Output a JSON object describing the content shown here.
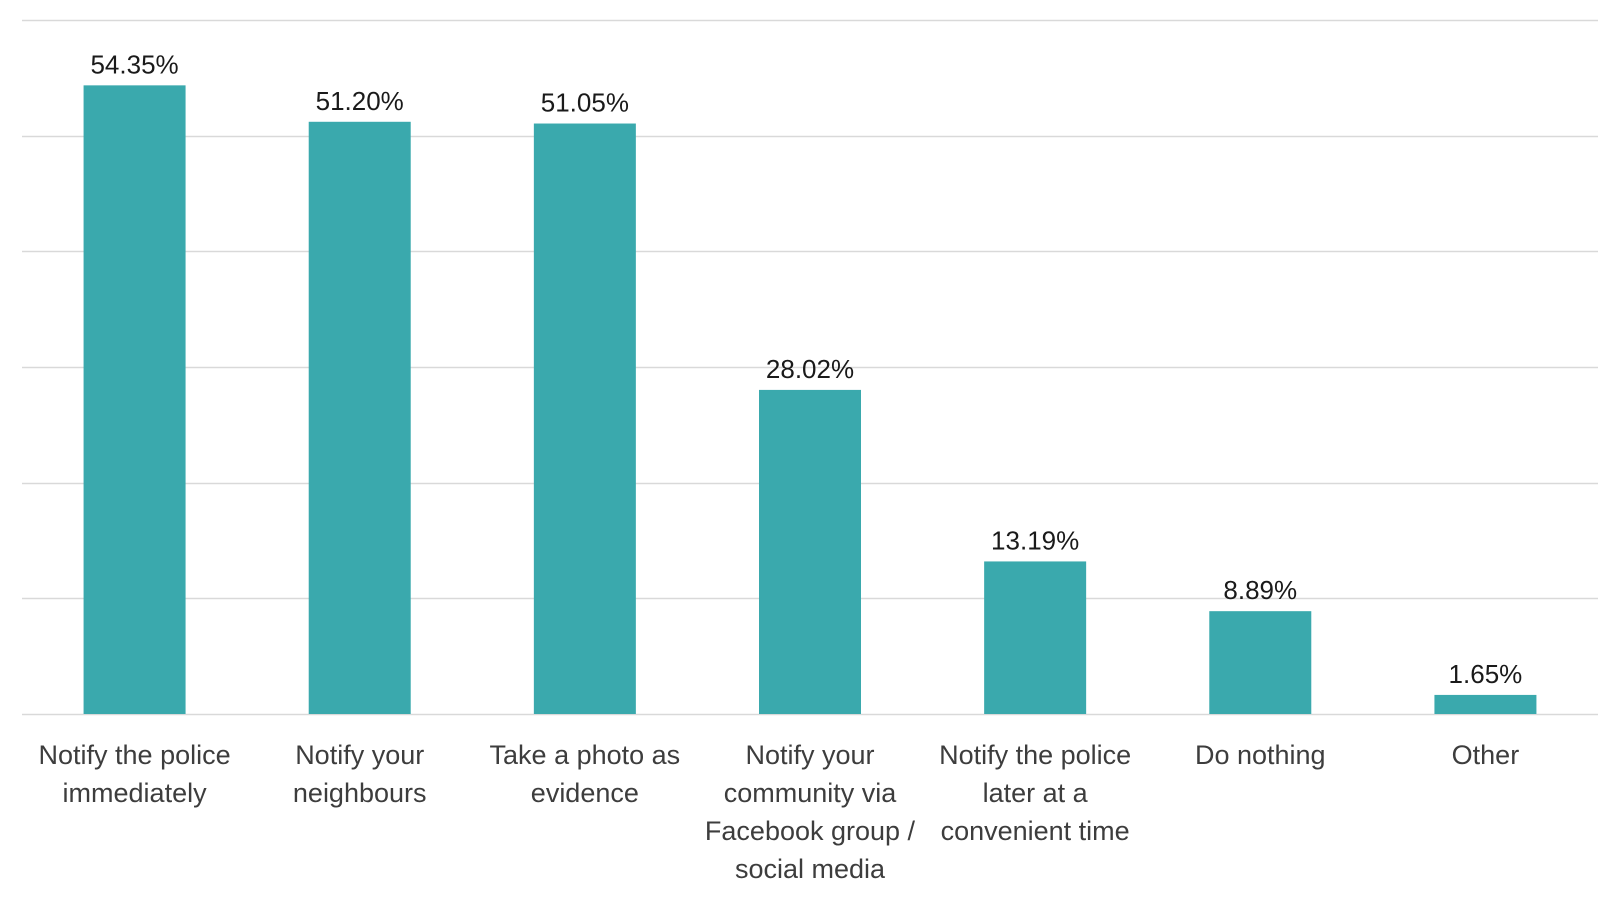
{
  "chart_data": {
    "type": "bar",
    "categories": [
      [
        "Notify the police",
        "immediately"
      ],
      [
        "Notify your",
        "neighbours"
      ],
      [
        "Take a photo as",
        "evidence"
      ],
      [
        "Notify your",
        "community via",
        "Facebook group /",
        "social media"
      ],
      [
        "Notify the police",
        "later at a",
        "convenient time"
      ],
      [
        "Do nothing"
      ],
      [
        "Other"
      ]
    ],
    "values": [
      54.35,
      51.2,
      51.05,
      28.02,
      13.19,
      8.89,
      1.65
    ],
    "value_labels": [
      "54.35%",
      "51.20%",
      "51.05%",
      "28.02%",
      "13.19%",
      "8.89%",
      "1.65%"
    ],
    "ylim": [
      0,
      60
    ],
    "gridline_step": 10,
    "grid": true,
    "y_tick_labels_visible": false,
    "bar_color": "#3aa9ad",
    "grid_color": "#d9d9d9"
  }
}
